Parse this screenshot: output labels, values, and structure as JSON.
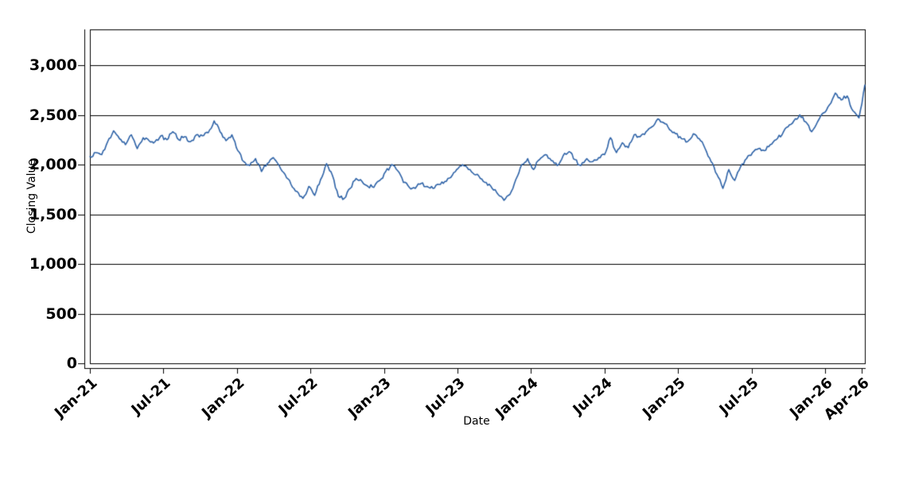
{
  "figure": {
    "background": "#ffffff",
    "axis_color": "#000000",
    "grid_color": "#000000"
  },
  "chart_data": {
    "type": "line",
    "title": "",
    "xlabel": "Date",
    "ylabel": "Closing Value",
    "grid": "horizontal",
    "legend": "none",
    "x_start": 2021.0,
    "x_end": 2026.27,
    "ylim": [
      0,
      3360
    ],
    "y_ticks": [
      {
        "v": 0,
        "label": "0"
      },
      {
        "v": 500,
        "label": "500"
      },
      {
        "v": 1000,
        "label": "1,000"
      },
      {
        "v": 1500,
        "label": "1,500"
      },
      {
        "v": 2000,
        "label": "2,000"
      },
      {
        "v": 2500,
        "label": "2,500"
      },
      {
        "v": 3000,
        "label": "3,000"
      }
    ],
    "x_ticks": [
      {
        "t": 2021.0,
        "label": "Jan-21"
      },
      {
        "t": 2021.5,
        "label": "Jul-21"
      },
      {
        "t": 2022.0,
        "label": "Jan-22"
      },
      {
        "t": 2022.5,
        "label": "Jul-22"
      },
      {
        "t": 2023.0,
        "label": "Jan-23"
      },
      {
        "t": 2023.5,
        "label": "Jul-23"
      },
      {
        "t": 2024.0,
        "label": "Jan-24"
      },
      {
        "t": 2024.5,
        "label": "Jul-24"
      },
      {
        "t": 2025.0,
        "label": "Jan-25"
      },
      {
        "t": 2025.5,
        "label": "Jul-25"
      },
      {
        "t": 2026.0,
        "label": "Jan-26"
      },
      {
        "t": 2026.25,
        "label": "Apr-26"
      }
    ],
    "series": [
      {
        "name": "Closing Value",
        "color": "#2d62a7",
        "line_width": 1.6,
        "values": [
          2080,
          2120,
          2100,
          2230,
          2340,
          2260,
          2200,
          2300,
          2160,
          2270,
          2240,
          2230,
          2290,
          2250,
          2330,
          2250,
          2280,
          2230,
          2300,
          2290,
          2320,
          2440,
          2330,
          2240,
          2300,
          2140,
          2030,
          1990,
          2060,
          1930,
          2010,
          2070,
          1990,
          1900,
          1800,
          1730,
          1660,
          1780,
          1690,
          1850,
          2010,
          1890,
          1680,
          1660,
          1760,
          1860,
          1830,
          1780,
          1770,
          1840,
          1930,
          2000,
          1940,
          1820,
          1770,
          1760,
          1810,
          1780,
          1760,
          1800,
          1830,
          1870,
          1950,
          2000,
          1950,
          1900,
          1860,
          1820,
          1760,
          1700,
          1640,
          1700,
          1850,
          2000,
          2060,
          1950,
          2050,
          2100,
          2040,
          1990,
          2090,
          2130,
          2050,
          1990,
          2060,
          2030,
          2070,
          2100,
          2270,
          2120,
          2220,
          2170,
          2300,
          2280,
          2330,
          2380,
          2460,
          2420,
          2350,
          2310,
          2260,
          2230,
          2310,
          2260,
          2160,
          2030,
          1900,
          1760,
          1950,
          1840,
          1980,
          2060,
          2120,
          2160,
          2140,
          2200,
          2250,
          2300,
          2380,
          2440,
          2500,
          2430,
          2330,
          2430,
          2520,
          2600,
          2720,
          2650,
          2690,
          2540,
          2470,
          2800
        ]
      }
    ],
    "noise_amplitude": 22,
    "noise_seed": 13,
    "noise_subdivisions": 4
  }
}
